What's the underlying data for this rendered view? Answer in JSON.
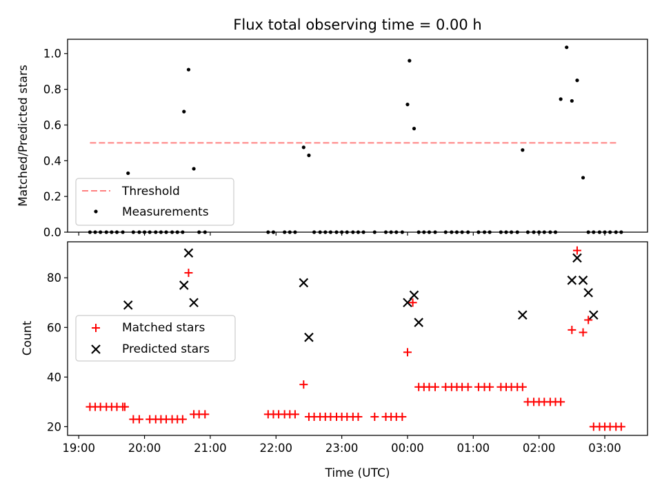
{
  "title": "Flux total observing time = 0.00 h",
  "colors": {
    "threshold": "#ff7f7f",
    "measurements": "#000000",
    "matched": "#ff0000",
    "predicted": "#000000"
  },
  "chart_data": [
    {
      "type": "scatter",
      "ylabel": "Matched/Predicted stars",
      "ylim": [
        0,
        1.08
      ],
      "yticks": [
        0.0,
        0.2,
        0.4,
        0.6,
        0.8,
        1.0
      ],
      "ytick_labels": [
        "0.0",
        "0.2",
        "0.4",
        "0.6",
        "0.8",
        "1.0"
      ],
      "xlim": [
        18.83,
        27.65
      ],
      "legend": {
        "location": "lower-left",
        "entries": [
          "Threshold",
          "Measurements"
        ]
      },
      "threshold": {
        "name": "Threshold",
        "y": 0.5,
        "x": [
          19.17,
          27.2
        ]
      },
      "series": [
        {
          "name": "Measurements",
          "x": [
            19.17,
            19.25,
            19.33,
            19.42,
            19.5,
            19.58,
            19.67,
            19.75,
            19.83,
            19.92,
            20.0,
            20.08,
            20.17,
            20.25,
            20.33,
            20.42,
            20.5,
            20.58,
            20.6,
            20.67,
            20.75,
            20.83,
            20.92,
            21.88,
            21.96,
            22.13,
            22.21,
            22.29,
            22.42,
            22.5,
            22.58,
            22.67,
            22.75,
            22.83,
            22.92,
            23.0,
            23.08,
            23.17,
            23.25,
            23.33,
            23.5,
            23.67,
            23.75,
            23.83,
            23.92,
            24.0,
            24.03,
            24.1,
            24.17,
            24.25,
            24.33,
            24.42,
            24.58,
            24.67,
            24.75,
            24.83,
            24.92,
            25.08,
            25.17,
            25.25,
            25.42,
            25.5,
            25.58,
            25.67,
            25.75,
            25.83,
            25.92,
            26.0,
            26.08,
            26.17,
            26.25,
            26.33,
            26.42,
            26.5,
            26.58,
            26.67,
            26.75,
            26.83,
            26.92,
            27.0,
            27.08,
            27.17,
            27.25
          ],
          "y": [
            0,
            0,
            0,
            0,
            0,
            0,
            0,
            0.33,
            0,
            0,
            0,
            0,
            0,
            0,
            0,
            0,
            0,
            0,
            0.675,
            0.91,
            0.355,
            0,
            0,
            0,
            0,
            0,
            0,
            0,
            0.475,
            0.43,
            0,
            0,
            0,
            0,
            0,
            0,
            0,
            0,
            0,
            0,
            0,
            0,
            0,
            0,
            0,
            0.715,
            0.96,
            0.58,
            0,
            0,
            0,
            0,
            0,
            0,
            0,
            0,
            0,
            0,
            0,
            0,
            0,
            0,
            0,
            0,
            0.46,
            0,
            0,
            0,
            0,
            0,
            0,
            0.745,
            1.035,
            0.735,
            0.85,
            0.305,
            0,
            0,
            0,
            0,
            0,
            0,
            0
          ]
        }
      ]
    },
    {
      "type": "scatter",
      "ylabel": "Count",
      "xlabel": "Time (UTC)",
      "ylim": [
        16.5,
        94.5
      ],
      "yticks": [
        20,
        40,
        60,
        80
      ],
      "ytick_labels": [
        "20",
        "40",
        "60",
        "80"
      ],
      "xlim": [
        18.83,
        27.65
      ],
      "xticks": [
        19,
        20,
        21,
        22,
        23,
        24,
        25,
        26,
        27
      ],
      "xtick_labels": [
        "19:00",
        "20:00",
        "21:00",
        "22:00",
        "23:00",
        "00:00",
        "01:00",
        "02:00",
        "03:00"
      ],
      "legend": {
        "location": "center-left",
        "entries": [
          "Matched stars",
          "Predicted stars"
        ]
      },
      "series": [
        {
          "name": "Matched stars",
          "marker": "plus",
          "x": [
            19.17,
            19.25,
            19.33,
            19.42,
            19.5,
            19.58,
            19.67,
            19.7,
            19.83,
            19.92,
            20.08,
            20.17,
            20.25,
            20.33,
            20.42,
            20.5,
            20.58,
            20.67,
            20.75,
            20.83,
            20.92,
            21.88,
            21.96,
            22.04,
            22.13,
            22.21,
            22.29,
            22.42,
            22.5,
            22.58,
            22.67,
            22.75,
            22.83,
            22.92,
            23.0,
            23.08,
            23.17,
            23.25,
            23.5,
            23.67,
            23.75,
            23.83,
            23.92,
            24.0,
            24.08,
            24.17,
            24.25,
            24.33,
            24.42,
            24.58,
            24.67,
            24.75,
            24.83,
            24.92,
            25.08,
            25.17,
            25.25,
            25.42,
            25.5,
            25.58,
            25.67,
            25.75,
            25.83,
            25.92,
            26.0,
            26.08,
            26.17,
            26.25,
            26.33,
            26.5,
            26.58,
            26.67,
            26.75,
            26.83,
            26.92,
            27.0,
            27.08,
            27.17,
            27.25
          ],
          "y": [
            28,
            28,
            28,
            28,
            28,
            28,
            28,
            28,
            23,
            23,
            23,
            23,
            23,
            23,
            23,
            23,
            23,
            82,
            25,
            25,
            25,
            25,
            25,
            25,
            25,
            25,
            25,
            37,
            24,
            24,
            24,
            24,
            24,
            24,
            24,
            24,
            24,
            24,
            24,
            24,
            24,
            24,
            24,
            50,
            70,
            36,
            36,
            36,
            36,
            36,
            36,
            36,
            36,
            36,
            36,
            36,
            36,
            36,
            36,
            36,
            36,
            36,
            30,
            30,
            30,
            30,
            30,
            30,
            30,
            59,
            91,
            58,
            63,
            20,
            20,
            20,
            20,
            20,
            20
          ]
        },
        {
          "name": "Predicted stars",
          "marker": "x",
          "x": [
            19.75,
            20.6,
            20.67,
            20.75,
            22.42,
            22.5,
            24.0,
            24.1,
            24.17,
            25.75,
            26.5,
            26.58,
            26.67,
            26.75,
            26.83
          ],
          "y": [
            69,
            77,
            90,
            70,
            78,
            56,
            70,
            73,
            62,
            65,
            79,
            88,
            79,
            74,
            65
          ]
        }
      ]
    }
  ]
}
